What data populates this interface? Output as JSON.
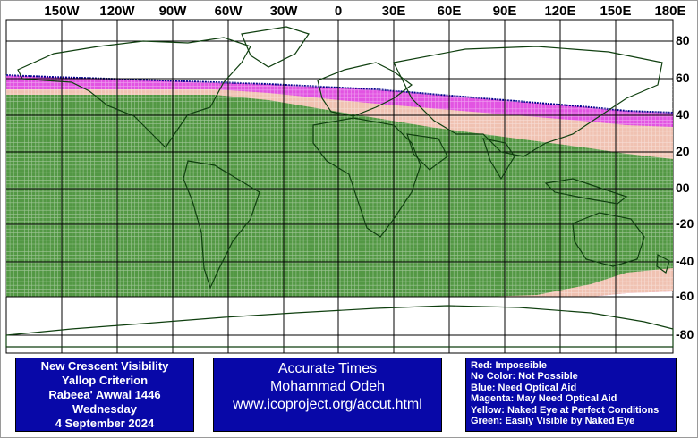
{
  "lon_labels": [
    "150W",
    "120W",
    "90W",
    "60W",
    "30W",
    "0",
    "30E",
    "60E",
    "90E",
    "120E",
    "150E",
    "180E"
  ],
  "lat_labels": [
    "80",
    "60",
    "40",
    "20",
    "00",
    "-20",
    "-40",
    "-60",
    "-80"
  ],
  "zone_colors": {
    "red": "#d00000",
    "blue": "#00008b",
    "magenta": "#d81bd8",
    "yellow": "#f4e7a2",
    "green": "#1f8a1f",
    "coast": "#000000",
    "grid": "#000000"
  },
  "visibility_zones": [
    {
      "zone": "magenta",
      "note": "high northern latitudes, west"
    },
    {
      "zone": "yellow",
      "note": "around 50N-60N west and 30N-40N east"
    },
    {
      "zone": "green",
      "note": "60S to 55N broad belt"
    }
  ],
  "info_panel": {
    "line1": "New Crescent Visibility",
    "line2": "Yallop Criterion",
    "line3": "Rabeea' Awwal 1446",
    "line4": "Wednesday",
    "line5": "4 September 2024"
  },
  "credit_panel": {
    "line1": "Accurate Times",
    "line2": "Mohammad Odeh",
    "line3": "www.icoproject.org/accut.html"
  },
  "legend": {
    "red": "Red: Impossible",
    "none": "No Color: Not Possible",
    "blue": "Blue: Need Optical Aid",
    "magenta": "Magenta: May Need Optical Aid",
    "yellow": "Yellow: Naked Eye at Perfect Conditions",
    "green": "Green: Easily Visible by Naked Eye"
  }
}
